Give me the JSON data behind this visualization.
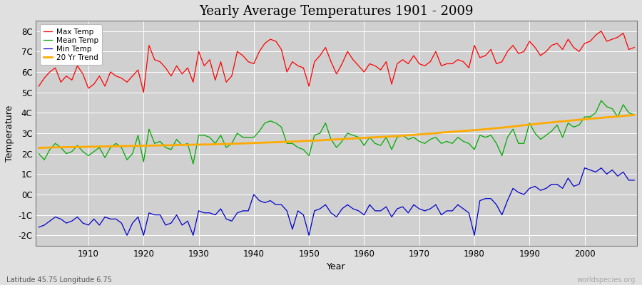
{
  "title": "Yearly Average Temperatures 1901 - 2009",
  "xlabel": "Year",
  "ylabel": "Temperature",
  "lat_lon_label": "Latitude 45.75 Longitude 6.75",
  "watermark": "worldspecies.org",
  "ylim": [
    -2.5,
    8.5
  ],
  "yticks": [
    -2,
    -1,
    0,
    1,
    2,
    3,
    4,
    5,
    6,
    7,
    8
  ],
  "ytick_labels": [
    "-2C",
    "-1C",
    "0C",
    "1C",
    "2C",
    "3C",
    "4C",
    "5C",
    "6C",
    "7C",
    "8C"
  ],
  "years": [
    1901,
    1902,
    1903,
    1904,
    1905,
    1906,
    1907,
    1908,
    1909,
    1910,
    1911,
    1912,
    1913,
    1914,
    1915,
    1916,
    1917,
    1918,
    1919,
    1920,
    1921,
    1922,
    1923,
    1924,
    1925,
    1926,
    1927,
    1928,
    1929,
    1930,
    1931,
    1932,
    1933,
    1934,
    1935,
    1936,
    1937,
    1938,
    1939,
    1940,
    1941,
    1942,
    1943,
    1944,
    1945,
    1946,
    1947,
    1948,
    1949,
    1950,
    1951,
    1952,
    1953,
    1954,
    1955,
    1956,
    1957,
    1958,
    1959,
    1960,
    1961,
    1962,
    1963,
    1964,
    1965,
    1966,
    1967,
    1968,
    1969,
    1970,
    1971,
    1972,
    1973,
    1974,
    1975,
    1976,
    1977,
    1978,
    1979,
    1980,
    1981,
    1982,
    1983,
    1984,
    1985,
    1986,
    1987,
    1988,
    1989,
    1990,
    1991,
    1992,
    1993,
    1994,
    1995,
    1996,
    1997,
    1998,
    1999,
    2000,
    2001,
    2002,
    2003,
    2004,
    2005,
    2006,
    2007,
    2008,
    2009
  ],
  "max_temp": [
    5.3,
    5.7,
    6.0,
    6.2,
    5.5,
    5.8,
    5.6,
    6.3,
    5.9,
    5.2,
    5.4,
    5.8,
    5.3,
    6.0,
    5.8,
    5.7,
    5.5,
    5.8,
    6.1,
    5.0,
    7.3,
    6.6,
    6.5,
    6.2,
    5.8,
    6.3,
    5.9,
    6.2,
    5.5,
    7.0,
    6.3,
    6.6,
    5.6,
    6.5,
    5.5,
    5.8,
    7.0,
    6.8,
    6.5,
    6.4,
    7.0,
    7.4,
    7.6,
    7.5,
    7.1,
    6.0,
    6.5,
    6.3,
    6.2,
    5.3,
    6.5,
    6.8,
    7.2,
    6.5,
    5.9,
    6.4,
    7.0,
    6.6,
    6.3,
    6.0,
    6.4,
    6.3,
    6.1,
    6.5,
    5.4,
    6.4,
    6.6,
    6.4,
    6.8,
    6.4,
    6.3,
    6.5,
    7.0,
    6.3,
    6.4,
    6.4,
    6.6,
    6.5,
    6.2,
    7.3,
    6.7,
    6.8,
    7.1,
    6.4,
    6.5,
    7.0,
    7.3,
    6.9,
    7.0,
    7.5,
    7.2,
    6.8,
    7.0,
    7.3,
    7.4,
    7.1,
    7.6,
    7.2,
    7.0,
    7.4,
    7.5,
    7.8,
    8.0,
    7.5,
    7.6,
    7.7,
    7.9,
    7.1,
    7.2
  ],
  "mean_temp": [
    2.0,
    1.7,
    2.2,
    2.5,
    2.3,
    2.0,
    2.1,
    2.4,
    2.1,
    1.9,
    2.1,
    2.3,
    1.8,
    2.3,
    2.5,
    2.3,
    1.7,
    2.0,
    2.9,
    1.6,
    3.2,
    2.5,
    2.6,
    2.3,
    2.2,
    2.7,
    2.4,
    2.5,
    1.5,
    2.9,
    2.9,
    2.8,
    2.5,
    2.9,
    2.3,
    2.5,
    3.0,
    2.8,
    2.8,
    2.8,
    3.1,
    3.5,
    3.6,
    3.5,
    3.3,
    2.5,
    2.5,
    2.3,
    2.2,
    1.9,
    2.9,
    3.0,
    3.5,
    2.7,
    2.3,
    2.6,
    3.0,
    2.9,
    2.8,
    2.4,
    2.8,
    2.5,
    2.4,
    2.8,
    2.2,
    2.8,
    2.9,
    2.7,
    2.8,
    2.6,
    2.5,
    2.7,
    2.8,
    2.5,
    2.6,
    2.5,
    2.8,
    2.6,
    2.5,
    2.2,
    2.9,
    2.8,
    2.9,
    2.5,
    1.9,
    2.8,
    3.2,
    2.5,
    2.5,
    3.5,
    3.0,
    2.7,
    2.9,
    3.1,
    3.4,
    2.8,
    3.5,
    3.3,
    3.4,
    3.8,
    3.8,
    4.0,
    4.6,
    4.3,
    4.2,
    3.8,
    4.4,
    4.0,
    3.9
  ],
  "min_temp": [
    -1.6,
    -1.5,
    -1.3,
    -1.1,
    -1.2,
    -1.4,
    -1.3,
    -1.1,
    -1.4,
    -1.5,
    -1.2,
    -1.5,
    -1.1,
    -1.2,
    -1.2,
    -1.4,
    -2.0,
    -1.4,
    -1.1,
    -2.0,
    -0.9,
    -1.0,
    -1.0,
    -1.5,
    -1.4,
    -1.0,
    -1.5,
    -1.3,
    -2.0,
    -0.8,
    -0.9,
    -0.9,
    -1.0,
    -0.7,
    -1.2,
    -1.3,
    -0.9,
    -0.8,
    -0.8,
    0.0,
    -0.3,
    -0.4,
    -0.3,
    -0.5,
    -0.5,
    -0.8,
    -1.7,
    -0.8,
    -1.0,
    -2.0,
    -0.8,
    -0.7,
    -0.5,
    -0.9,
    -1.1,
    -0.7,
    -0.5,
    -0.7,
    -0.8,
    -1.0,
    -0.5,
    -0.8,
    -0.8,
    -0.6,
    -1.1,
    -0.7,
    -0.6,
    -0.9,
    -0.5,
    -0.7,
    -0.8,
    -0.7,
    -0.5,
    -1.0,
    -0.8,
    -0.8,
    -0.5,
    -0.7,
    -0.9,
    -2.0,
    -0.3,
    -0.2,
    -0.2,
    -0.5,
    -1.0,
    -0.3,
    0.3,
    0.1,
    0.0,
    0.3,
    0.4,
    0.2,
    0.3,
    0.5,
    0.5,
    0.3,
    0.8,
    0.4,
    0.5,
    1.3,
    1.2,
    1.1,
    1.3,
    1.0,
    1.2,
    0.9,
    1.1,
    0.7,
    0.7
  ],
  "trend": [
    2.28,
    2.29,
    2.3,
    2.31,
    2.31,
    2.32,
    2.32,
    2.33,
    2.33,
    2.34,
    2.34,
    2.35,
    2.35,
    2.36,
    2.36,
    2.37,
    2.37,
    2.38,
    2.38,
    2.39,
    2.39,
    2.4,
    2.4,
    2.41,
    2.41,
    2.42,
    2.43,
    2.43,
    2.44,
    2.44,
    2.45,
    2.45,
    2.46,
    2.47,
    2.47,
    2.48,
    2.49,
    2.5,
    2.51,
    2.52,
    2.53,
    2.54,
    2.55,
    2.56,
    2.57,
    2.58,
    2.59,
    2.6,
    2.62,
    2.63,
    2.64,
    2.65,
    2.67,
    2.68,
    2.7,
    2.71,
    2.73,
    2.74,
    2.76,
    2.77,
    2.79,
    2.8,
    2.82,
    2.83,
    2.85,
    2.86,
    2.88,
    2.9,
    2.92,
    2.94,
    2.96,
    2.98,
    3.0,
    3.03,
    3.05,
    3.07,
    3.09,
    3.11,
    3.13,
    3.15,
    3.17,
    3.2,
    3.22,
    3.25,
    3.27,
    3.3,
    3.33,
    3.36,
    3.39,
    3.42,
    3.45,
    3.48,
    3.51,
    3.53,
    3.56,
    3.58,
    3.61,
    3.63,
    3.66,
    3.68,
    3.71,
    3.73,
    3.75,
    3.78,
    3.8,
    3.82,
    3.85,
    3.87,
    3.89
  ],
  "max_color": "#ff0000",
  "mean_color": "#00aa00",
  "min_color": "#0000cc",
  "trend_color": "#ffaa00",
  "bg_color": "#e0e0e0",
  "plot_bg_color": "#d0d0d0",
  "grid_color": "#ffffff",
  "legend_bg_color": "#ffffff"
}
